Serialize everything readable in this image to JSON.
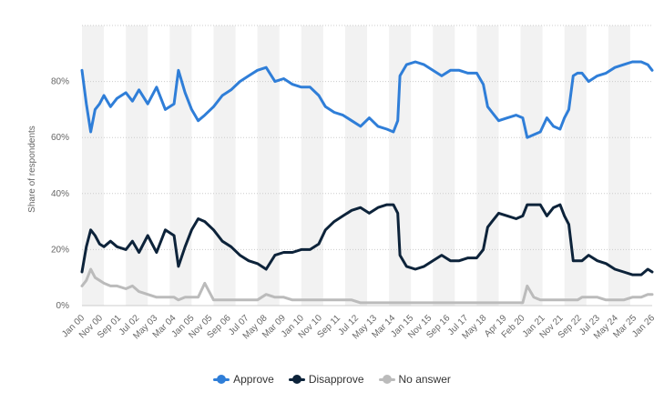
{
  "colors": {
    "approve": "#2f7ed8",
    "disapprove": "#0d233a",
    "no_answer": "#bbbbbb",
    "band": "#f2f2f2",
    "grid": "#cccccc"
  },
  "chart_data": {
    "type": "line",
    "title": "",
    "xlabel": "",
    "ylabel": "Share of respondents",
    "ylim": [
      0,
      100
    ],
    "y_ticks": [
      "0%",
      "20%",
      "40%",
      "60%",
      "80%"
    ],
    "y_tick_values": [
      0,
      20,
      40,
      60,
      80
    ],
    "x_ticks": [
      "Jan 00",
      "Nov 00",
      "Sep 01",
      "Jul 02",
      "May 03",
      "Mar 04",
      "Jan 05",
      "Nov 05",
      "Sep 06",
      "Jul 07",
      "May 08",
      "Mar 09",
      "Jan 10",
      "Nov 10",
      "Sep 11",
      "Jul 12",
      "May 13",
      "Mar 14",
      "Jan 15",
      "Nov 15",
      "Sep 16",
      "Jul 17",
      "May 18",
      "Apr 19",
      "Feb 20",
      "Jan 21",
      "Nov 21",
      "Sep 22",
      "Jul 23",
      "May 24",
      "Mar 25",
      "Jan 26"
    ],
    "x_tick_years": [
      2000.0,
      2000.83,
      2001.67,
      2002.5,
      2003.33,
      2004.17,
      2005.0,
      2005.83,
      2006.67,
      2007.5,
      2008.33,
      2009.17,
      2010.0,
      2010.83,
      2011.67,
      2012.5,
      2013.33,
      2014.17,
      2015.0,
      2015.83,
      2016.67,
      2017.5,
      2018.33,
      2019.25,
      2020.08,
      2021.0,
      2021.83,
      2022.67,
      2023.5,
      2024.33,
      2025.17,
      2026.0
    ],
    "x_range": [
      2000.0,
      2026.0
    ],
    "legend_position": "bottom",
    "series": [
      {
        "name": "Approve",
        "color_key": "approve",
        "x": [
          2000.0,
          2000.2,
          2000.4,
          2000.6,
          2000.8,
          2001.0,
          2001.3,
          2001.6,
          2002.0,
          2002.3,
          2002.6,
          2003.0,
          2003.4,
          2003.8,
          2004.2,
          2004.4,
          2004.7,
          2005.0,
          2005.3,
          2005.6,
          2006.0,
          2006.4,
          2006.8,
          2007.2,
          2007.6,
          2008.0,
          2008.4,
          2008.8,
          2009.2,
          2009.6,
          2010.0,
          2010.4,
          2010.8,
          2011.1,
          2011.5,
          2011.9,
          2012.3,
          2012.7,
          2013.1,
          2013.5,
          2013.9,
          2014.2,
          2014.4,
          2014.5,
          2014.8,
          2015.2,
          2015.6,
          2016.0,
          2016.4,
          2016.8,
          2017.2,
          2017.6,
          2018.0,
          2018.3,
          2018.5,
          2018.7,
          2019.0,
          2019.4,
          2019.8,
          2020.1,
          2020.3,
          2020.6,
          2020.9,
          2021.2,
          2021.5,
          2021.8,
          2022.0,
          2022.2,
          2022.4,
          2022.6,
          2022.8,
          2023.1,
          2023.5,
          2023.9,
          2024.3,
          2024.7,
          2025.1,
          2025.5,
          2025.8,
          2026.0
        ],
        "y": [
          84,
          72,
          62,
          70,
          72,
          75,
          71,
          74,
          76,
          73,
          77,
          72,
          78,
          70,
          72,
          84,
          76,
          70,
          66,
          68,
          71,
          75,
          77,
          80,
          82,
          84,
          85,
          80,
          81,
          79,
          78,
          78,
          75,
          71,
          69,
          68,
          66,
          64,
          67,
          64,
          63,
          62,
          66,
          82,
          86,
          87,
          86,
          84,
          82,
          84,
          84,
          83,
          83,
          79,
          71,
          69,
          66,
          67,
          68,
          67,
          60,
          61,
          62,
          67,
          64,
          63,
          67,
          70,
          82,
          83,
          83,
          80,
          82,
          83,
          85,
          86,
          87,
          87,
          86,
          84
        ]
      },
      {
        "name": "Disapprove",
        "color_key": "disapprove",
        "x": [
          2000.0,
          2000.2,
          2000.4,
          2000.6,
          2000.8,
          2001.0,
          2001.3,
          2001.6,
          2002.0,
          2002.3,
          2002.6,
          2003.0,
          2003.4,
          2003.8,
          2004.2,
          2004.4,
          2004.7,
          2005.0,
          2005.3,
          2005.6,
          2006.0,
          2006.4,
          2006.8,
          2007.2,
          2007.6,
          2008.0,
          2008.4,
          2008.8,
          2009.2,
          2009.6,
          2010.0,
          2010.4,
          2010.8,
          2011.1,
          2011.5,
          2011.9,
          2012.3,
          2012.7,
          2013.1,
          2013.5,
          2013.9,
          2014.2,
          2014.4,
          2014.5,
          2014.8,
          2015.2,
          2015.6,
          2016.0,
          2016.4,
          2016.8,
          2017.2,
          2017.6,
          2018.0,
          2018.3,
          2018.5,
          2018.7,
          2019.0,
          2019.4,
          2019.8,
          2020.1,
          2020.3,
          2020.6,
          2020.9,
          2021.2,
          2021.5,
          2021.8,
          2022.0,
          2022.2,
          2022.4,
          2022.6,
          2022.8,
          2023.1,
          2023.5,
          2023.9,
          2024.3,
          2024.7,
          2025.1,
          2025.5,
          2025.8,
          2026.0
        ],
        "y": [
          12,
          21,
          27,
          25,
          22,
          21,
          23,
          21,
          20,
          23,
          19,
          25,
          19,
          27,
          25,
          14,
          21,
          27,
          31,
          30,
          27,
          23,
          21,
          18,
          16,
          15,
          13,
          18,
          19,
          19,
          20,
          20,
          22,
          27,
          30,
          32,
          34,
          35,
          33,
          35,
          36,
          36,
          33,
          18,
          14,
          13,
          14,
          16,
          18,
          16,
          16,
          17,
          17,
          20,
          28,
          30,
          33,
          32,
          31,
          32,
          36,
          36,
          36,
          32,
          35,
          36,
          32,
          29,
          16,
          16,
          16,
          18,
          16,
          15,
          13,
          12,
          11,
          11,
          13,
          12
        ]
      },
      {
        "name": "No answer",
        "color_key": "no_answer",
        "x": [
          2000.0,
          2000.2,
          2000.4,
          2000.6,
          2000.8,
          2001.0,
          2001.3,
          2001.6,
          2002.0,
          2002.3,
          2002.6,
          2003.0,
          2003.4,
          2003.8,
          2004.2,
          2004.4,
          2004.7,
          2005.0,
          2005.3,
          2005.6,
          2006.0,
          2006.4,
          2006.8,
          2007.2,
          2007.6,
          2008.0,
          2008.4,
          2008.8,
          2009.2,
          2009.6,
          2010.0,
          2010.4,
          2010.8,
          2011.1,
          2011.5,
          2011.9,
          2012.3,
          2012.7,
          2013.1,
          2013.5,
          2013.9,
          2014.2,
          2014.4,
          2014.5,
          2014.8,
          2015.2,
          2015.6,
          2016.0,
          2016.4,
          2016.8,
          2017.2,
          2017.6,
          2018.0,
          2018.3,
          2018.5,
          2018.7,
          2019.0,
          2019.4,
          2019.8,
          2020.1,
          2020.3,
          2020.6,
          2020.9,
          2021.2,
          2021.5,
          2021.8,
          2022.0,
          2022.2,
          2022.4,
          2022.6,
          2022.8,
          2023.1,
          2023.5,
          2023.9,
          2024.3,
          2024.7,
          2025.1,
          2025.5,
          2025.8,
          2026.0
        ],
        "y": [
          7,
          9,
          13,
          10,
          9,
          8,
          7,
          7,
          6,
          7,
          5,
          4,
          3,
          3,
          3,
          2,
          3,
          3,
          3,
          8,
          2,
          2,
          2,
          2,
          2,
          2,
          4,
          3,
          3,
          2,
          2,
          2,
          2,
          2,
          2,
          2,
          2,
          1,
          1,
          1,
          1,
          1,
          1,
          1,
          1,
          1,
          1,
          1,
          1,
          1,
          1,
          1,
          1,
          1,
          1,
          1,
          1,
          1,
          1,
          1,
          7,
          3,
          2,
          2,
          2,
          2,
          2,
          2,
          2,
          2,
          3,
          3,
          3,
          2,
          2,
          2,
          3,
          3,
          4,
          4
        ]
      }
    ]
  }
}
